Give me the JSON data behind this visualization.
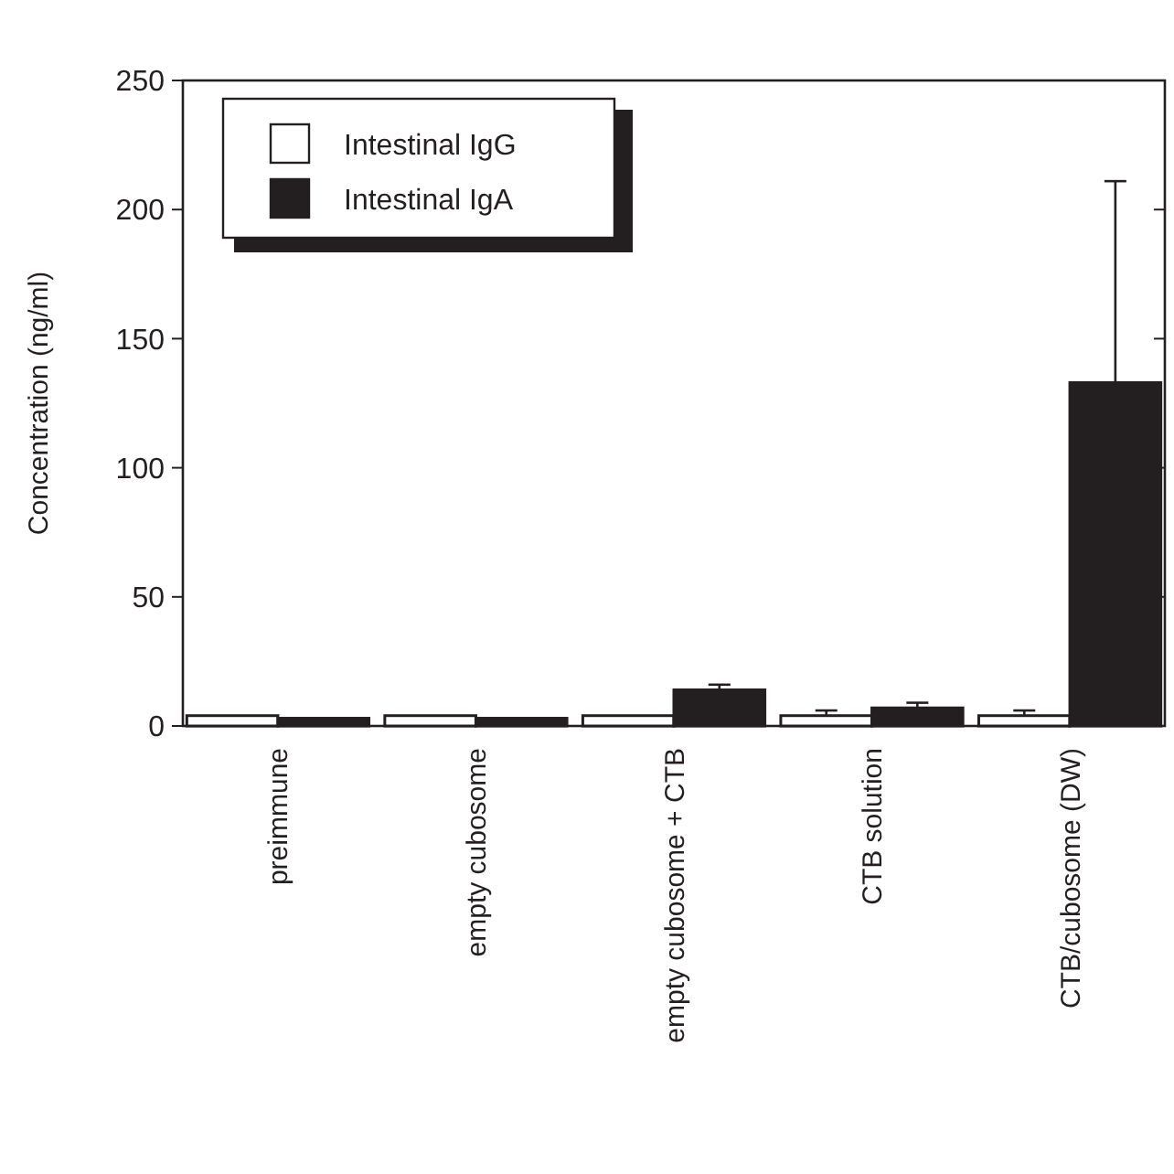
{
  "chart_data": {
    "type": "bar",
    "ylabel": "Concentration (ng/ml)",
    "categories": [
      "preimmune",
      "empty cubosome",
      "empty cubosome + CTB",
      "CTB solution",
      "CTB/cubosome (DW)"
    ],
    "series": [
      {
        "name": "Intestinal IgG",
        "color": "#ffffff",
        "values": [
          4,
          4,
          4,
          4,
          4
        ],
        "errors": [
          null,
          null,
          null,
          2,
          2
        ]
      },
      {
        "name": "Intestinal IgA",
        "color": "#231f20",
        "values": [
          3,
          3,
          14,
          7,
          133
        ],
        "errors": [
          null,
          null,
          2,
          2,
          78
        ]
      }
    ],
    "ylim": [
      0,
      250
    ],
    "yticks": [
      0,
      50,
      100,
      150,
      200,
      250
    ],
    "legend": "top left"
  }
}
